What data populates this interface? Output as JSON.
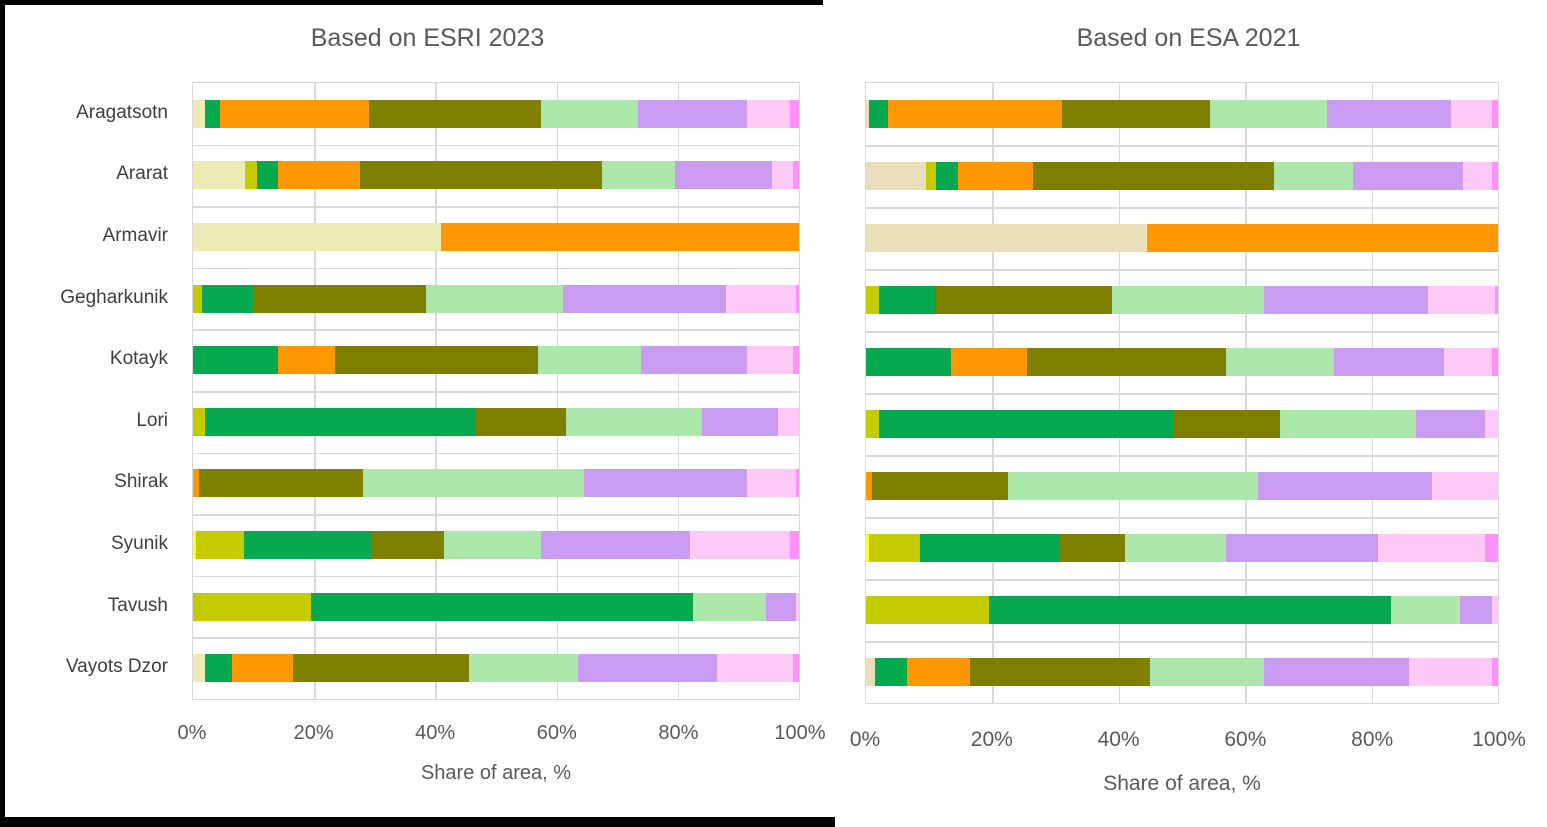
{
  "palette": {
    "cream_esri": "#EBEBB4",
    "cream_esa": "#EADFBA",
    "yellow": "#FFFF2E",
    "yellow_green": "#C4CC00",
    "green": "#06A94D",
    "orange": "#FF9800",
    "olive": "#808000",
    "light_green": "#ACE8AC",
    "purple": "#C99CF2",
    "pale_pink": "#FEC9F7",
    "magenta": "#FE90F8"
  },
  "grid_color": "#D9D9D9",
  "text_color": "#595959",
  "category_text_color": "#3F3F3F",
  "chart_data": [
    {
      "type": "bar",
      "orientation": "horizontal",
      "stacked": true,
      "title": "Based on ESRI 2023",
      "xlabel": "Share of area, %",
      "xlim": [
        0,
        100
      ],
      "xticks": [
        "0%",
        "20%",
        "40%",
        "60%",
        "80%",
        "100%"
      ],
      "grid": true,
      "legend": "none",
      "categories": [
        "Aragatsotn",
        "Ararat",
        "Armavir",
        "Gegharkunik",
        "Kotayk",
        "Lori",
        "Shirak",
        "Syunik",
        "Tavush",
        "Vayots Dzor"
      ],
      "units": "percent of area",
      "rows": [
        {
          "category": "Aragatsotn",
          "segments": [
            [
              "cream_esri",
              2
            ],
            [
              "green",
              2.5
            ],
            [
              "orange",
              24.5
            ],
            [
              "olive",
              28.5
            ],
            [
              "light_green",
              16
            ],
            [
              "purple",
              18
            ],
            [
              "pale_pink",
              7
            ],
            [
              "magenta",
              1.5
            ]
          ]
        },
        {
          "category": "Ararat",
          "segments": [
            [
              "cream_esri",
              8.5
            ],
            [
              "yellow_green",
              2
            ],
            [
              "green",
              3.5
            ],
            [
              "orange",
              13.5
            ],
            [
              "olive",
              40
            ],
            [
              "light_green",
              12
            ],
            [
              "purple",
              16
            ],
            [
              "pale_pink",
              3.5
            ],
            [
              "magenta",
              1
            ]
          ]
        },
        {
          "category": "Armavir",
          "segments": [
            [
              "cream_esri",
              41
            ],
            [
              "orange",
              59
            ]
          ]
        },
        {
          "category": "Gegharkunik",
          "segments": [
            [
              "yellow_green",
              1.5
            ],
            [
              "green",
              8.5
            ],
            [
              "olive",
              28.5
            ],
            [
              "light_green",
              22.5
            ],
            [
              "purple",
              27
            ],
            [
              "pale_pink",
              11.5
            ],
            [
              "magenta",
              0.5
            ]
          ]
        },
        {
          "category": "Kotayk",
          "segments": [
            [
              "green",
              14
            ],
            [
              "orange",
              9.5
            ],
            [
              "olive",
              33.5
            ],
            [
              "light_green",
              17
            ],
            [
              "purple",
              17.5
            ],
            [
              "pale_pink",
              7.5
            ],
            [
              "magenta",
              1
            ]
          ]
        },
        {
          "category": "Lori",
          "segments": [
            [
              "yellow_green",
              2
            ],
            [
              "green",
              44.5
            ],
            [
              "olive",
              15
            ],
            [
              "light_green",
              22.5
            ],
            [
              "purple",
              12.5
            ],
            [
              "pale_pink",
              3.5
            ]
          ]
        },
        {
          "category": "Shirak",
          "segments": [
            [
              "orange",
              1
            ],
            [
              "olive",
              27
            ],
            [
              "light_green",
              36.5
            ],
            [
              "purple",
              27
            ],
            [
              "pale_pink",
              8
            ],
            [
              "magenta",
              0.5
            ]
          ]
        },
        {
          "category": "Syunik",
          "segments": [
            [
              "yellow",
              0.5
            ],
            [
              "yellow_green",
              8
            ],
            [
              "green",
              21
            ],
            [
              "olive",
              12
            ],
            [
              "light_green",
              16
            ],
            [
              "purple",
              24.5
            ],
            [
              "pale_pink",
              16.5
            ],
            [
              "magenta",
              1.5
            ]
          ]
        },
        {
          "category": "Tavush",
          "segments": [
            [
              "yellow_green",
              19.5
            ],
            [
              "green",
              63
            ],
            [
              "light_green",
              12
            ],
            [
              "purple",
              5
            ],
            [
              "pale_pink",
              0.5
            ]
          ]
        },
        {
          "category": "Vayots Dzor",
          "segments": [
            [
              "cream_esri",
              2
            ],
            [
              "green",
              4.5
            ],
            [
              "orange",
              10
            ],
            [
              "olive",
              29
            ],
            [
              "light_green",
              18
            ],
            [
              "purple",
              23
            ],
            [
              "pale_pink",
              12.5
            ],
            [
              "magenta",
              1
            ]
          ]
        }
      ]
    },
    {
      "type": "bar",
      "orientation": "horizontal",
      "stacked": true,
      "title": "Based on ESA 2021",
      "xlabel": "Share of area, %",
      "xlim": [
        0,
        100
      ],
      "xticks": [
        "0%",
        "20%",
        "40%",
        "60%",
        "80%",
        "100%"
      ],
      "grid": true,
      "legend": "none",
      "categories": [
        "Aragatsotn",
        "Ararat",
        "Armavir",
        "Gegharkunik",
        "Kotayk",
        "Lori",
        "Shirak",
        "Syunik",
        "Tavush",
        "Vayots Dzor"
      ],
      "units": "percent of area",
      "rows": [
        {
          "category": "Aragatsotn",
          "segments": [
            [
              "cream_esa",
              0.5
            ],
            [
              "green",
              3
            ],
            [
              "orange",
              27.5
            ],
            [
              "olive",
              23.5
            ],
            [
              "light_green",
              18.5
            ],
            [
              "purple",
              19.5
            ],
            [
              "pale_pink",
              6.5
            ],
            [
              "magenta",
              1
            ]
          ]
        },
        {
          "category": "Ararat",
          "segments": [
            [
              "cream_esa",
              9.5
            ],
            [
              "yellow_green",
              1.5
            ],
            [
              "green",
              3.5
            ],
            [
              "orange",
              12
            ],
            [
              "olive",
              38
            ],
            [
              "light_green",
              12.5
            ],
            [
              "purple",
              17.5
            ],
            [
              "pale_pink",
              4.5
            ],
            [
              "magenta",
              1
            ]
          ]
        },
        {
          "category": "Armavir",
          "segments": [
            [
              "cream_esa",
              44.5
            ],
            [
              "orange",
              55.5
            ]
          ]
        },
        {
          "category": "Gegharkunik",
          "segments": [
            [
              "yellow_green",
              2
            ],
            [
              "green",
              9
            ],
            [
              "olive",
              28
            ],
            [
              "light_green",
              24
            ],
            [
              "purple",
              26
            ],
            [
              "pale_pink",
              10.5
            ],
            [
              "magenta",
              0.5
            ]
          ]
        },
        {
          "category": "Kotayk",
          "segments": [
            [
              "green",
              13.5
            ],
            [
              "orange",
              12
            ],
            [
              "olive",
              31.5
            ],
            [
              "light_green",
              17
            ],
            [
              "purple",
              17.5
            ],
            [
              "pale_pink",
              7.5
            ],
            [
              "magenta",
              1
            ]
          ]
        },
        {
          "category": "Lori",
          "segments": [
            [
              "yellow_green",
              2
            ],
            [
              "green",
              46.5
            ],
            [
              "olive",
              17
            ],
            [
              "light_green",
              21.5
            ],
            [
              "purple",
              11
            ],
            [
              "pale_pink",
              2
            ]
          ]
        },
        {
          "category": "Shirak",
          "segments": [
            [
              "orange",
              1
            ],
            [
              "olive",
              21.5
            ],
            [
              "light_green",
              39.5
            ],
            [
              "purple",
              27.5
            ],
            [
              "pale_pink",
              10.5
            ]
          ]
        },
        {
          "category": "Syunik",
          "segments": [
            [
              "yellow",
              0.5
            ],
            [
              "yellow_green",
              8
            ],
            [
              "green",
              22
            ],
            [
              "olive",
              10.5
            ],
            [
              "light_green",
              16
            ],
            [
              "purple",
              24
            ],
            [
              "pale_pink",
              17
            ],
            [
              "magenta",
              2
            ]
          ]
        },
        {
          "category": "Tavush",
          "segments": [
            [
              "yellow_green",
              19.5
            ],
            [
              "green",
              63.5
            ],
            [
              "light_green",
              11
            ],
            [
              "purple",
              5
            ],
            [
              "pale_pink",
              1
            ]
          ]
        },
        {
          "category": "Vayots Dzor",
          "segments": [
            [
              "cream_esa",
              1.5
            ],
            [
              "green",
              5
            ],
            [
              "orange",
              10
            ],
            [
              "olive",
              28.5
            ],
            [
              "light_green",
              18
            ],
            [
              "purple",
              23
            ],
            [
              "pale_pink",
              13
            ],
            [
              "magenta",
              1
            ]
          ]
        }
      ]
    }
  ]
}
